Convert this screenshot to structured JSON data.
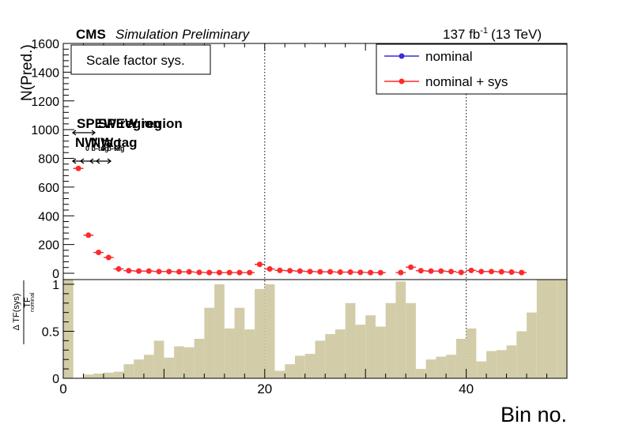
{
  "header": {
    "experiment": "CMS",
    "status": "Simulation Preliminary",
    "lumi": "137 fb",
    "lumi_exp": "-1",
    "energy": "(13 TeV)"
  },
  "chart_data": [
    {
      "type": "scatter",
      "panel": "top",
      "ylabel": "N(Pred.)",
      "xlim": [
        0,
        50
      ],
      "ylim": [
        0,
        1600
      ],
      "yticks": [
        "0",
        "200",
        "400",
        "600",
        "800",
        "1000",
        "1200",
        "1400",
        "1600"
      ],
      "grid": false,
      "vlines_dotted": [
        20,
        40
      ],
      "label_box": "Scale factor sys.",
      "legend": {
        "placement": "top-right",
        "entries": [
          {
            "label": "nominal",
            "color": "#3b2bd9"
          },
          {
            "label": "nominal + sys",
            "color": "#ff2a2a"
          }
        ]
      },
      "annotations": {
        "line1": "SPEW region",
        "line2": "NW tag",
        "sub": "0 b-tag"
      },
      "series": [
        {
          "name": "nominal",
          "color": "#3b2bd9",
          "x": [
            1.5,
            2.5,
            3.5,
            4.5,
            5.5,
            6.5,
            7.5,
            8.5,
            9.5,
            10.5,
            11.5,
            12.5,
            13.5,
            14.5,
            15.5,
            16.5,
            17.5,
            18.5,
            19.5,
            20.5,
            21.5,
            22.5,
            23.5,
            24.5,
            25.5,
            26.5,
            27.5,
            28.5,
            29.5,
            30.5,
            31.5,
            33.5,
            34.5,
            35.5,
            36.5,
            37.5,
            38.5,
            39.5,
            40.5,
            41.5,
            42.5,
            43.5,
            44.5,
            45.5
          ],
          "y": [
            730,
            265,
            145,
            110,
            30,
            18,
            15,
            15,
            12,
            12,
            10,
            10,
            6,
            5,
            5,
            5,
            5,
            5,
            62,
            30,
            20,
            18,
            15,
            12,
            10,
            10,
            8,
            8,
            6,
            5,
            4,
            5,
            42,
            18,
            15,
            15,
            12,
            6,
            20,
            12,
            12,
            10,
            8,
            5
          ]
        },
        {
          "name": "nominal + sys",
          "color": "#ff2a2a",
          "x": [
            1.5,
            2.5,
            3.5,
            4.5,
            5.5,
            6.5,
            7.5,
            8.5,
            9.5,
            10.5,
            11.5,
            12.5,
            13.5,
            14.5,
            15.5,
            16.5,
            17.5,
            18.5,
            19.5,
            20.5,
            21.5,
            22.5,
            23.5,
            24.5,
            25.5,
            26.5,
            27.5,
            28.5,
            29.5,
            30.5,
            31.5,
            33.5,
            34.5,
            35.5,
            36.5,
            37.5,
            38.5,
            39.5,
            40.5,
            41.5,
            42.5,
            43.5,
            44.5,
            45.5
          ],
          "y": [
            730,
            265,
            145,
            110,
            30,
            18,
            15,
            15,
            12,
            12,
            10,
            10,
            6,
            5,
            5,
            5,
            5,
            5,
            62,
            30,
            20,
            18,
            15,
            12,
            10,
            10,
            8,
            8,
            6,
            5,
            4,
            5,
            42,
            18,
            15,
            15,
            12,
            6,
            20,
            12,
            12,
            10,
            8,
            5
          ]
        }
      ]
    },
    {
      "type": "bar",
      "panel": "bottom",
      "ylabel_num": "Δ TF(sys)",
      "ylabel_den": "TF",
      "ylabel_den_sub": "nominal",
      "xlabel": "Bin no.",
      "xlim": [
        0,
        50
      ],
      "ylim": [
        0,
        1.05
      ],
      "yticks": [
        "0",
        "0.5",
        "1"
      ],
      "xticks": [
        "0",
        "20",
        "40"
      ],
      "color": "#d2cda8",
      "bin_edges_start": 0,
      "bin_width": 1,
      "values": [
        1.05,
        0.0,
        0.04,
        0.05,
        0.06,
        0.07,
        0.15,
        0.2,
        0.25,
        0.4,
        0.22,
        0.34,
        0.33,
        0.42,
        0.75,
        1.0,
        0.53,
        0.75,
        0.52,
        0.95,
        1.0,
        0.08,
        0.15,
        0.24,
        0.26,
        0.4,
        0.47,
        0.52,
        0.8,
        0.57,
        0.67,
        0.55,
        0.8,
        1.03,
        0.8,
        0.1,
        0.2,
        0.23,
        0.25,
        0.42,
        0.53,
        0.18,
        0.29,
        0.3,
        0.35,
        0.5,
        0.7,
        1.05,
        1.05,
        1.05
      ]
    }
  ]
}
